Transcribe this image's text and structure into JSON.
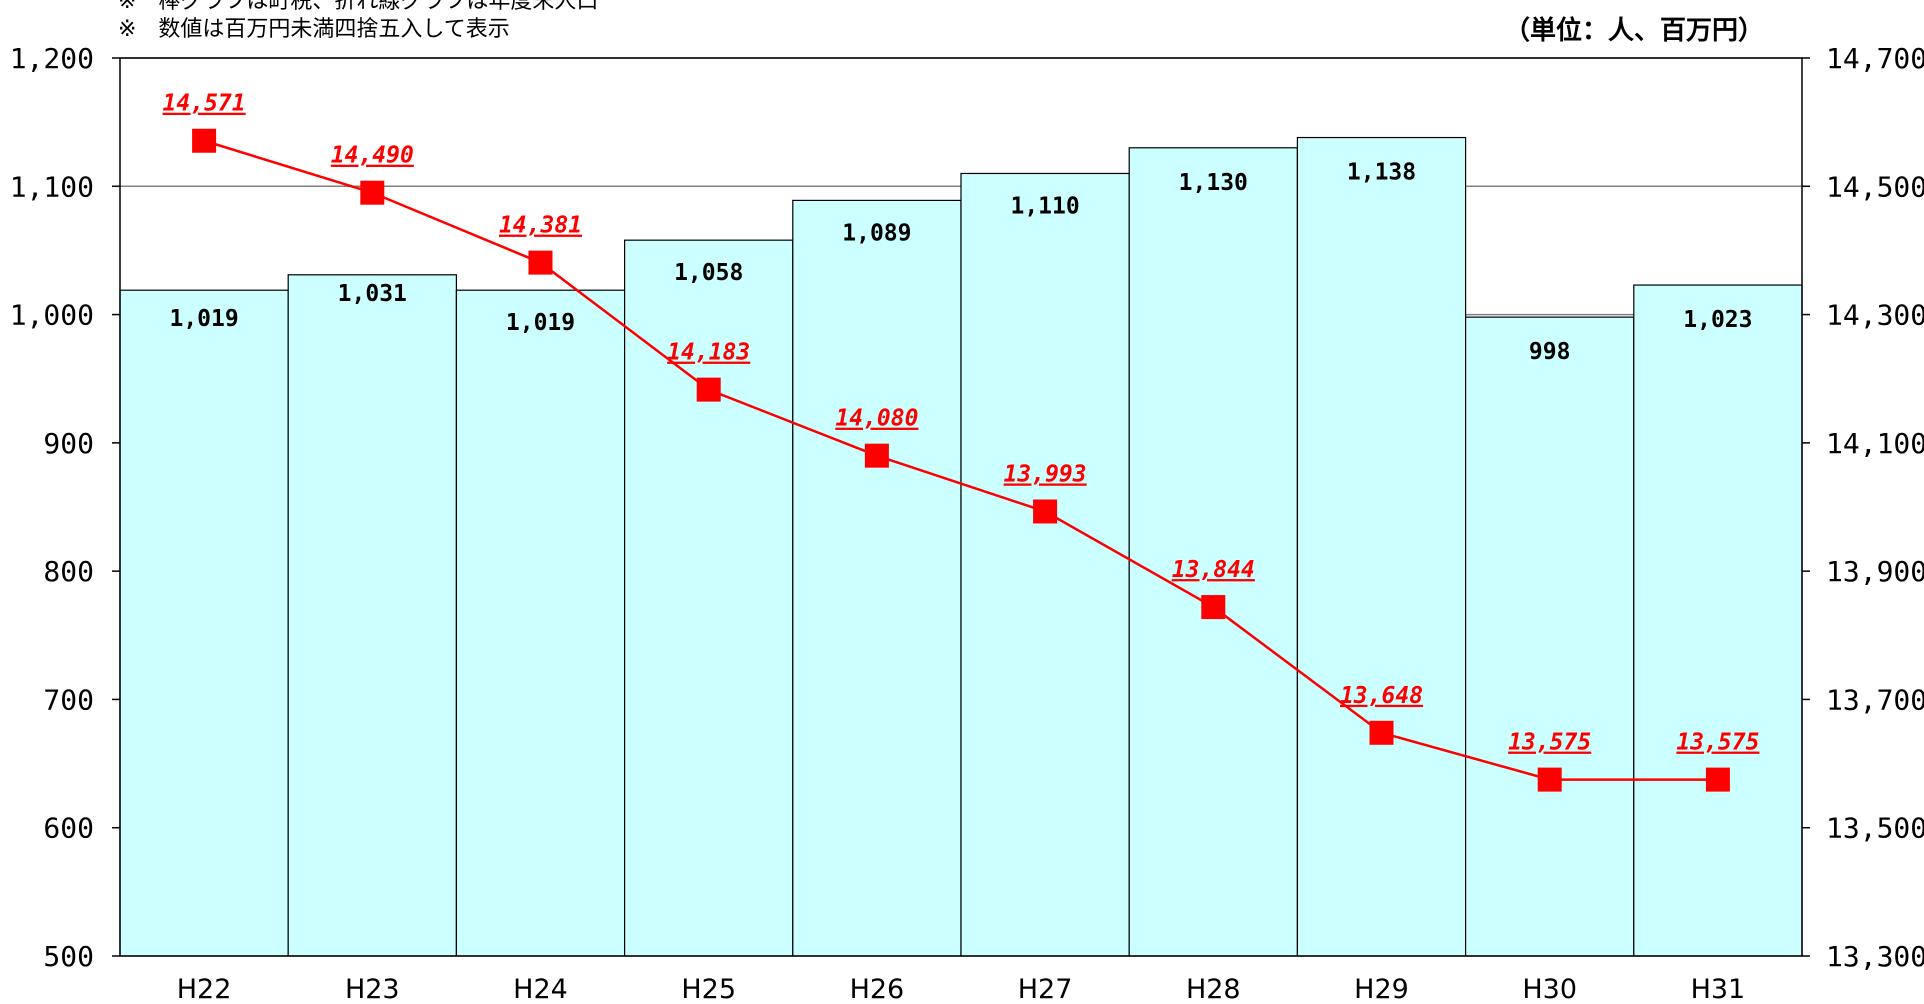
{
  "notes": {
    "line1": "※　棒グラフは町税、折れ線グラフは年度末人口",
    "line2": "※　数値は百万円未満四捨五入して表示"
  },
  "unit": "（単位：人、百万円）",
  "colors": {
    "bar_fill": "#ccffff",
    "line": "#ff0000",
    "marker": "#ff0000",
    "grid": "#808080"
  },
  "chart_data": {
    "type": "bar",
    "categories": [
      "H22",
      "H23",
      "H24",
      "H25",
      "H26",
      "H27",
      "H28",
      "H29",
      "H30",
      "H31"
    ],
    "series": [
      {
        "type": "bar",
        "axis": "left",
        "values": [
          1019,
          1031,
          1019,
          1058,
          1089,
          1110,
          1130,
          1138,
          998,
          1023
        ],
        "labels": [
          "1,019",
          "1,031",
          "1,019",
          "1,058",
          "1,089",
          "1,110",
          "1,130",
          "1,138",
          "998",
          "1,023"
        ]
      },
      {
        "type": "line",
        "axis": "right",
        "values": [
          14571,
          14490,
          14381,
          14183,
          14080,
          13993,
          13844,
          13648,
          13575,
          13575
        ],
        "labels": [
          "14,571",
          "14,490",
          "14,381",
          "14,183",
          "14,080",
          "13,993",
          "13,844",
          "13,648",
          "13,575",
          "13,575"
        ]
      }
    ],
    "y_left": {
      "ylim": [
        500,
        1200
      ],
      "ticks": [
        500,
        600,
        700,
        800,
        900,
        1000,
        1100,
        1200
      ],
      "tick_labels": [
        "500",
        "600",
        "700",
        "800",
        "900",
        "1,000",
        "1,100",
        "1,200"
      ]
    },
    "y_right": {
      "ylim": [
        13300,
        14700
      ],
      "ticks": [
        13300,
        13500,
        13700,
        13900,
        14100,
        14300,
        14500,
        14700
      ],
      "tick_labels": [
        "13,300",
        "13,500",
        "13,700",
        "13,900",
        "14,100",
        "14,300",
        "14,500",
        "14,700"
      ]
    },
    "grid": "horizontal, left-axis major ticks",
    "legend": "none"
  }
}
